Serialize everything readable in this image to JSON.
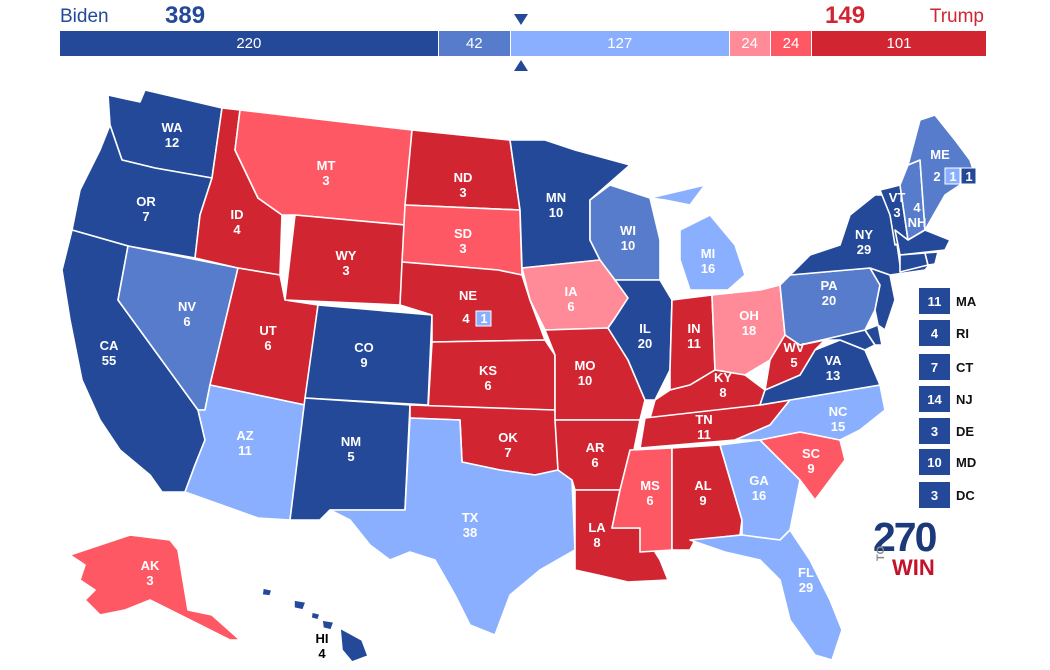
{
  "header": {
    "left_candidate": "Biden",
    "left_total": "389",
    "right_candidate": "Trump",
    "right_total": "149"
  },
  "colors": {
    "safe_dem": "#244999",
    "likely_dem": "#577ccc",
    "lean_dem": "#8aafff",
    "lean_rep": "#ff8b98",
    "likely_rep": "#ff5865",
    "safe_rep": "#d22532",
    "map_dark": "#244999"
  },
  "bar_segments": [
    {
      "rating": "safe_dem",
      "value": "220",
      "count": 220
    },
    {
      "rating": "likely_dem",
      "value": "42",
      "count": 42
    },
    {
      "rating": "lean_dem",
      "value": "127",
      "count": 127
    },
    {
      "rating": "lean_rep",
      "value": "24",
      "count": 24
    },
    {
      "rating": "likely_rep",
      "value": "24",
      "count": 24
    },
    {
      "rating": "safe_rep",
      "value": "101",
      "count": 101
    }
  ],
  "states": {
    "WA": {
      "abbr": "WA",
      "ev": "12",
      "rating": "safe_dem"
    },
    "OR": {
      "abbr": "OR",
      "ev": "7",
      "rating": "safe_dem"
    },
    "CA": {
      "abbr": "CA",
      "ev": "55",
      "rating": "safe_dem"
    },
    "NV": {
      "abbr": "NV",
      "ev": "6",
      "rating": "likely_dem"
    },
    "ID": {
      "abbr": "ID",
      "ev": "4",
      "rating": "safe_rep"
    },
    "MT": {
      "abbr": "MT",
      "ev": "3",
      "rating": "likely_rep"
    },
    "WY": {
      "abbr": "WY",
      "ev": "3",
      "rating": "safe_rep"
    },
    "UT": {
      "abbr": "UT",
      "ev": "6",
      "rating": "safe_rep"
    },
    "AZ": {
      "abbr": "AZ",
      "ev": "11",
      "rating": "lean_dem"
    },
    "CO": {
      "abbr": "CO",
      "ev": "9",
      "rating": "safe_dem"
    },
    "NM": {
      "abbr": "NM",
      "ev": "5",
      "rating": "safe_dem"
    },
    "ND": {
      "abbr": "ND",
      "ev": "3",
      "rating": "safe_rep"
    },
    "SD": {
      "abbr": "SD",
      "ev": "3",
      "rating": "likely_rep"
    },
    "NE": {
      "abbr": "NE",
      "ev": "4",
      "rating": "safe_rep",
      "district_ev": "1"
    },
    "KS": {
      "abbr": "KS",
      "ev": "6",
      "rating": "safe_rep"
    },
    "OK": {
      "abbr": "OK",
      "ev": "7",
      "rating": "safe_rep"
    },
    "TX": {
      "abbr": "TX",
      "ev": "38",
      "rating": "lean_dem"
    },
    "MN": {
      "abbr": "MN",
      "ev": "10",
      "rating": "safe_dem"
    },
    "IA": {
      "abbr": "IA",
      "ev": "6",
      "rating": "lean_rep"
    },
    "MO": {
      "abbr": "MO",
      "ev": "10",
      "rating": "safe_rep"
    },
    "AR": {
      "abbr": "AR",
      "ev": "6",
      "rating": "safe_rep"
    },
    "LA": {
      "abbr": "LA",
      "ev": "8",
      "rating": "safe_rep"
    },
    "WI": {
      "abbr": "WI",
      "ev": "10",
      "rating": "likely_dem"
    },
    "IL": {
      "abbr": "IL",
      "ev": "20",
      "rating": "safe_dem"
    },
    "MI": {
      "abbr": "MI",
      "ev": "16",
      "rating": "lean_dem"
    },
    "IN": {
      "abbr": "IN",
      "ev": "11",
      "rating": "safe_rep"
    },
    "OH": {
      "abbr": "OH",
      "ev": "18",
      "rating": "lean_rep"
    },
    "KY": {
      "abbr": "KY",
      "ev": "8",
      "rating": "safe_rep"
    },
    "TN": {
      "abbr": "TN",
      "ev": "11",
      "rating": "safe_rep"
    },
    "MS": {
      "abbr": "MS",
      "ev": "6",
      "rating": "likely_rep"
    },
    "AL": {
      "abbr": "AL",
      "ev": "9",
      "rating": "safe_rep"
    },
    "GA": {
      "abbr": "GA",
      "ev": "16",
      "rating": "lean_dem"
    },
    "FL": {
      "abbr": "FL",
      "ev": "29",
      "rating": "lean_dem"
    },
    "SC": {
      "abbr": "SC",
      "ev": "9",
      "rating": "likely_rep"
    },
    "NC": {
      "abbr": "NC",
      "ev": "15",
      "rating": "lean_dem"
    },
    "VA": {
      "abbr": "VA",
      "ev": "13",
      "rating": "safe_dem"
    },
    "WV": {
      "abbr": "WV",
      "ev": "5",
      "rating": "safe_rep"
    },
    "PA": {
      "abbr": "PA",
      "ev": "20",
      "rating": "likely_dem"
    },
    "NY": {
      "abbr": "NY",
      "ev": "29",
      "rating": "safe_dem"
    },
    "VT": {
      "abbr": "VT",
      "ev": "3",
      "rating": "safe_dem"
    },
    "NH": {
      "abbr": "NH",
      "ev": "4",
      "rating": "likely_dem"
    },
    "ME": {
      "abbr": "ME",
      "ev": "2",
      "rating": "likely_dem",
      "district_ev": [
        "1",
        "1"
      ]
    },
    "AK": {
      "abbr": "AK",
      "ev": "3",
      "rating": "likely_rep"
    },
    "HI": {
      "abbr": "HI",
      "ev": "4",
      "rating": "safe_dem"
    }
  },
  "small_states": [
    {
      "abbr": "MA",
      "ev": "11",
      "rating": "safe_dem"
    },
    {
      "abbr": "RI",
      "ev": "4",
      "rating": "safe_dem"
    },
    {
      "abbr": "CT",
      "ev": "7",
      "rating": "safe_dem"
    },
    {
      "abbr": "NJ",
      "ev": "14",
      "rating": "safe_dem"
    },
    {
      "abbr": "DE",
      "ev": "3",
      "rating": "safe_dem"
    },
    {
      "abbr": "MD",
      "ev": "10",
      "rating": "safe_dem"
    },
    {
      "abbr": "DC",
      "ev": "3",
      "rating": "safe_dem"
    }
  ],
  "logo": {
    "number": "270",
    "to": "TO",
    "win": "WIN"
  }
}
